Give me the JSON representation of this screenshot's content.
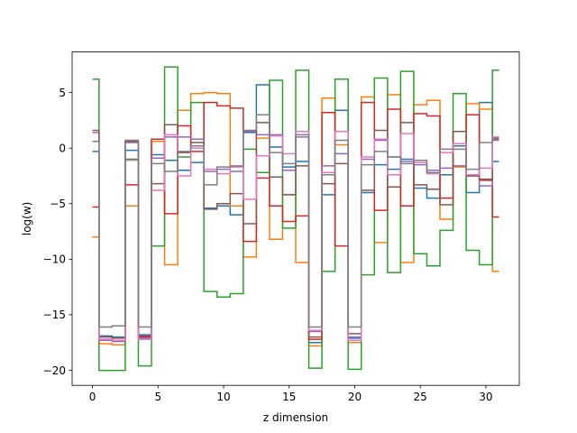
{
  "chart_data": {
    "type": "line",
    "drawstyle": "steps-mid",
    "xlabel": "z dimension",
    "ylabel": "log(w)",
    "xlim": [
      -1.55,
      32.55
    ],
    "ylim": [
      -21.35,
      8.65
    ],
    "xticks": [
      0,
      5,
      10,
      15,
      20,
      25,
      30
    ],
    "yticks": [
      -20,
      -15,
      -10,
      -5,
      0,
      5
    ],
    "grid": false,
    "legend": "none",
    "x": [
      0,
      1,
      2,
      3,
      4,
      5,
      6,
      7,
      8,
      9,
      10,
      11,
      12,
      13,
      14,
      15,
      16,
      17,
      18,
      19,
      20,
      21,
      22,
      23,
      24,
      25,
      26,
      27,
      28,
      29,
      30,
      31
    ],
    "series": [
      {
        "color": "#1f77b4",
        "values": [
          -0.3,
          -16.9,
          -17.0,
          -0.2,
          -16.8,
          -0.6,
          -1.1,
          -2.0,
          -1.3,
          -5.4,
          -5.2,
          -6.0,
          1.4,
          5.7,
          0.1,
          -1.7,
          -1.2,
          -17.5,
          -4.2,
          3.4,
          -17.1,
          -4.0,
          -1.5,
          -1.9,
          -1.0,
          -3.6,
          -4.5,
          -2.4,
          0.2,
          -4.0,
          4.1,
          -1.2
        ]
      },
      {
        "color": "#ff7f0e",
        "values": [
          -8.0,
          -17.6,
          -17.7,
          -5.2,
          -17.2,
          0.6,
          -10.5,
          3.4,
          4.9,
          5.0,
          4.9,
          -5.2,
          -9.8,
          0.9,
          -8.2,
          -4.2,
          -10.3,
          -17.8,
          4.5,
          0.3,
          -17.5,
          4.6,
          -8.5,
          4.8,
          -10.3,
          3.9,
          4.3,
          -6.4,
          -1.7,
          4.0,
          3.5,
          -11.1
        ]
      },
      {
        "color": "#2ca02c",
        "values": [
          6.2,
          -20.0,
          -20.0,
          -1.0,
          -19.6,
          -8.8,
          7.3,
          -0.8,
          4.1,
          -12.9,
          -13.4,
          -13.1,
          -0.1,
          -2.2,
          6.1,
          -7.2,
          7.0,
          -19.8,
          -11.1,
          6.2,
          -19.9,
          -11.4,
          6.3,
          -11.2,
          6.9,
          -9.5,
          -10.6,
          -7.4,
          4.9,
          -9.2,
          -10.5,
          7.0
        ]
      },
      {
        "color": "#d62728",
        "values": [
          -5.3,
          -17.2,
          -17.3,
          -3.3,
          -17.0,
          0.8,
          -5.9,
          2.0,
          -0.3,
          4.1,
          3.8,
          3.6,
          -8.4,
          -2.7,
          -5.2,
          -6.6,
          -6.1,
          -17.2,
          3.2,
          -8.8,
          -17.3,
          4.1,
          -5.6,
          3.5,
          -5.2,
          3.1,
          2.9,
          -4.5,
          1.5,
          3.0,
          -2.9,
          -6.2
        ]
      },
      {
        "color": "#9467bd",
        "values": [
          1.4,
          -17.3,
          -17.4,
          0.5,
          -17.1,
          -0.9,
          1.0,
          1.0,
          0.8,
          -2.1,
          -1.9,
          -2.1,
          1.5,
          1.2,
          1.2,
          -2.0,
          1.0,
          -16.5,
          -1.6,
          -0.5,
          -17.0,
          -1.0,
          0.7,
          -0.8,
          -1.2,
          -1.5,
          -2.0,
          -1.8,
          -1.6,
          -2.5,
          -3.4,
          0.7
        ]
      },
      {
        "color": "#8c564b",
        "values": [
          1.6,
          -17.0,
          -17.1,
          0.6,
          -16.9,
          -3.2,
          2.1,
          -0.4,
          0.5,
          -5.5,
          -5.0,
          -4.1,
          -6.8,
          2.3,
          -2.6,
          -4.2,
          -1.6,
          -17.0,
          -3.2,
          -1.4,
          -16.7,
          -3.8,
          1.6,
          -3.5,
          2.3,
          -3.3,
          -3.7,
          -5.1,
          1.5,
          -2.5,
          -2.8,
          0.9
        ]
      },
      {
        "color": "#e377c2",
        "values": [
          0.6,
          -17.2,
          -17.3,
          -1.1,
          -17.2,
          -3.8,
          1.2,
          -2.5,
          0.0,
          -1.9,
          -2.3,
          -1.7,
          -4.6,
          -0.7,
          1.1,
          -0.5,
          1.5,
          -16.4,
          -2.2,
          1.5,
          -17.3,
          -0.8,
          0.8,
          -2.4,
          1.3,
          -1.3,
          -2.3,
          -0.4,
          0.4,
          -2.4,
          -1.8,
          1.0
        ]
      },
      {
        "color": "#7f7f7f",
        "values": [
          0.6,
          -16.1,
          -16.0,
          0.7,
          -16.1,
          -1.4,
          -2.1,
          -0.3,
          0.2,
          -3.3,
          -1.7,
          -1.6,
          1.6,
          3.0,
          -0.4,
          -1.4,
          1.2,
          -16.1,
          -2.4,
          0.7,
          -16.1,
          -1.5,
          -0.3,
          -0.8,
          -1.4,
          -1.1,
          -2.2,
          -0.1,
          -0.1,
          -1.9,
          0.5,
          0.8
        ]
      }
    ]
  }
}
